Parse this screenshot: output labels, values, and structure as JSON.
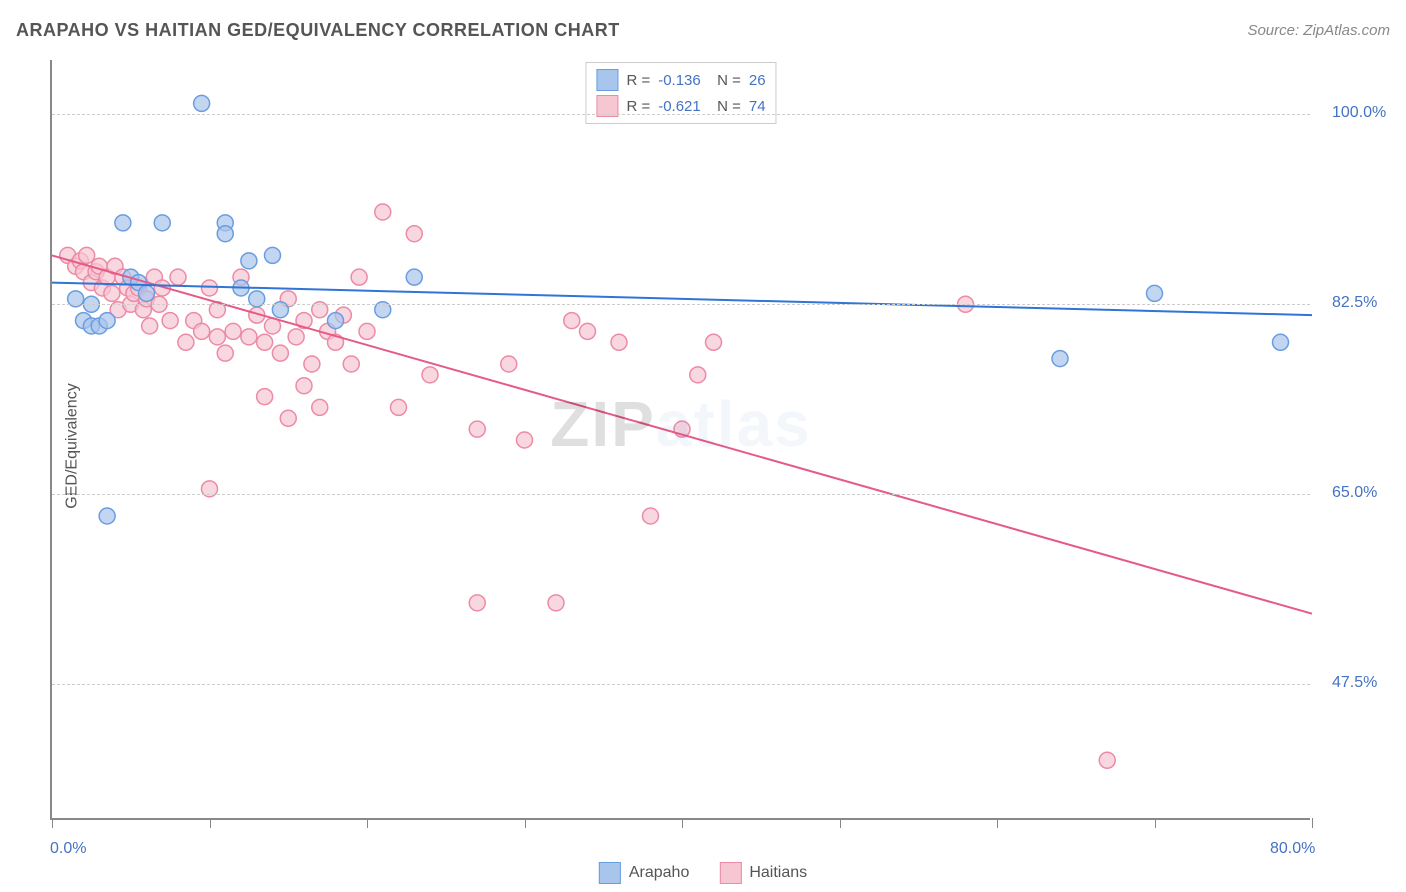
{
  "header": {
    "title": "ARAPAHO VS HAITIAN GED/EQUIVALENCY CORRELATION CHART",
    "source_label": "Source: ZipAtlas.com"
  },
  "watermark": {
    "pre": "ZIP",
    "accent": "atlas"
  },
  "chart": {
    "type": "scatter",
    "ylabel": "GED/Equivalency",
    "background_color": "#ffffff",
    "grid_color": "#cccccc",
    "axis_color": "#888888",
    "tick_label_color": "#4472c4",
    "xlim": [
      0,
      80
    ],
    "ylim": [
      35,
      105
    ],
    "x_ticks": [
      0,
      10,
      20,
      30,
      40,
      50,
      60,
      70,
      80
    ],
    "y_gridlines": [
      47.5,
      65.0,
      82.5,
      100.0
    ],
    "y_tick_labels": [
      "47.5%",
      "65.0%",
      "82.5%",
      "100.0%"
    ],
    "xlim_labels": [
      "0.0%",
      "80.0%"
    ],
    "marker_radius": 8,
    "line_width": 2,
    "series": [
      {
        "name": "Arapaho",
        "color_fill": "#a8c5ec",
        "color_stroke": "#6a9de0",
        "line_color": "#2e75d6",
        "R": "-0.136",
        "N": "26",
        "trend": {
          "x1": 0,
          "y1": 84.5,
          "x2": 80,
          "y2": 81.5
        },
        "points": [
          [
            1.5,
            83
          ],
          [
            2,
            81
          ],
          [
            2.5,
            82.5
          ],
          [
            2.5,
            80.5
          ],
          [
            3,
            80.5
          ],
          [
            3.5,
            81
          ],
          [
            4.5,
            90
          ],
          [
            5,
            85
          ],
          [
            5.5,
            84.5
          ],
          [
            6,
            83.5
          ],
          [
            7,
            90
          ],
          [
            9.5,
            101
          ],
          [
            11,
            90
          ],
          [
            11,
            89
          ],
          [
            12,
            84
          ],
          [
            12.5,
            86.5
          ],
          [
            13,
            83
          ],
          [
            14,
            87
          ],
          [
            14.5,
            82
          ],
          [
            18,
            81
          ],
          [
            23,
            85
          ],
          [
            21,
            82
          ],
          [
            64,
            77.5
          ],
          [
            70,
            83.5
          ],
          [
            78,
            79
          ],
          [
            3.5,
            63
          ]
        ]
      },
      {
        "name": "Haitians",
        "color_fill": "#f7c6d3",
        "color_stroke": "#ed8aa5",
        "line_color": "#e55a86",
        "R": "-0.621",
        "N": "74",
        "trend": {
          "x1": 0,
          "y1": 87,
          "x2": 80,
          "y2": 54
        },
        "points": [
          [
            1,
            87
          ],
          [
            1.5,
            86
          ],
          [
            1.8,
            86.5
          ],
          [
            2,
            85.5
          ],
          [
            2.2,
            87
          ],
          [
            2.5,
            84.5
          ],
          [
            2.8,
            85.5
          ],
          [
            3,
            86
          ],
          [
            3.2,
            84
          ],
          [
            3.5,
            85
          ],
          [
            3.8,
            83.5
          ],
          [
            4,
            86
          ],
          [
            4.2,
            82
          ],
          [
            4.5,
            85
          ],
          [
            4.8,
            84
          ],
          [
            5,
            82.5
          ],
          [
            5.2,
            83.5
          ],
          [
            5.5,
            84
          ],
          [
            5.8,
            82
          ],
          [
            6,
            83
          ],
          [
            6.2,
            80.5
          ],
          [
            6.5,
            85
          ],
          [
            6.8,
            82.5
          ],
          [
            7,
            84
          ],
          [
            7.5,
            81
          ],
          [
            8,
            85
          ],
          [
            8.5,
            79
          ],
          [
            9,
            81
          ],
          [
            9.5,
            80
          ],
          [
            10,
            84
          ],
          [
            10.5,
            82
          ],
          [
            11,
            78
          ],
          [
            11.5,
            80
          ],
          [
            12,
            85
          ],
          [
            12.5,
            79.5
          ],
          [
            13,
            81.5
          ],
          [
            13.5,
            79
          ],
          [
            14,
            80.5
          ],
          [
            14.5,
            78
          ],
          [
            15,
            83
          ],
          [
            15.5,
            79.5
          ],
          [
            16,
            81
          ],
          [
            16.5,
            77
          ],
          [
            17,
            82
          ],
          [
            17.5,
            80
          ],
          [
            18,
            79
          ],
          [
            18.5,
            81.5
          ],
          [
            19,
            77
          ],
          [
            19.5,
            85
          ],
          [
            20,
            80
          ],
          [
            21,
            91
          ],
          [
            22,
            73
          ],
          [
            23,
            89
          ],
          [
            24,
            76
          ],
          [
            10,
            65.5
          ],
          [
            10.5,
            79.5
          ],
          [
            13.5,
            74
          ],
          [
            15,
            72
          ],
          [
            16,
            75
          ],
          [
            17,
            73
          ],
          [
            27,
            71
          ],
          [
            27,
            55
          ],
          [
            29,
            77
          ],
          [
            30,
            70
          ],
          [
            32,
            55
          ],
          [
            33,
            81
          ],
          [
            34,
            80
          ],
          [
            36,
            79
          ],
          [
            38,
            63
          ],
          [
            40,
            71
          ],
          [
            41,
            76
          ],
          [
            42,
            79
          ],
          [
            58,
            82.5
          ],
          [
            67,
            40.5
          ]
        ]
      }
    ]
  },
  "legend": {
    "items": [
      {
        "label": "Arapaho",
        "fill": "#a8c5ec",
        "stroke": "#6a9de0"
      },
      {
        "label": "Haitians",
        "fill": "#f7c6d3",
        "stroke": "#ed8aa5"
      }
    ]
  }
}
